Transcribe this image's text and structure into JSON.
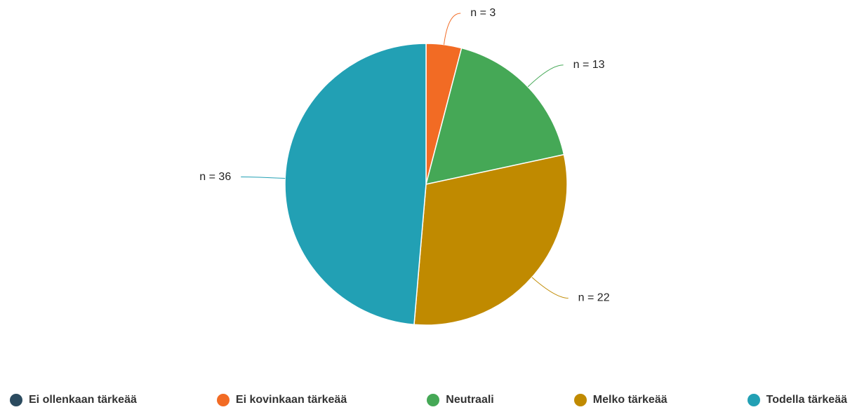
{
  "chart_data": {
    "type": "pie",
    "categories": [
      "Ei ollenkaan tärkeää",
      "Ei kovinkaan tärkeää",
      "Neutraali",
      "Melko tärkeää",
      "Todella tärkeää"
    ],
    "values": [
      0,
      3,
      13,
      22,
      36
    ],
    "value_labels": [
      null,
      "n = 3",
      "n = 13",
      "n = 22",
      "n = 36"
    ],
    "colors": [
      "#2b4b5f",
      "#f26b24",
      "#45a856",
      "#c08a00",
      "#22a0b4"
    ],
    "legend": "bottom"
  }
}
